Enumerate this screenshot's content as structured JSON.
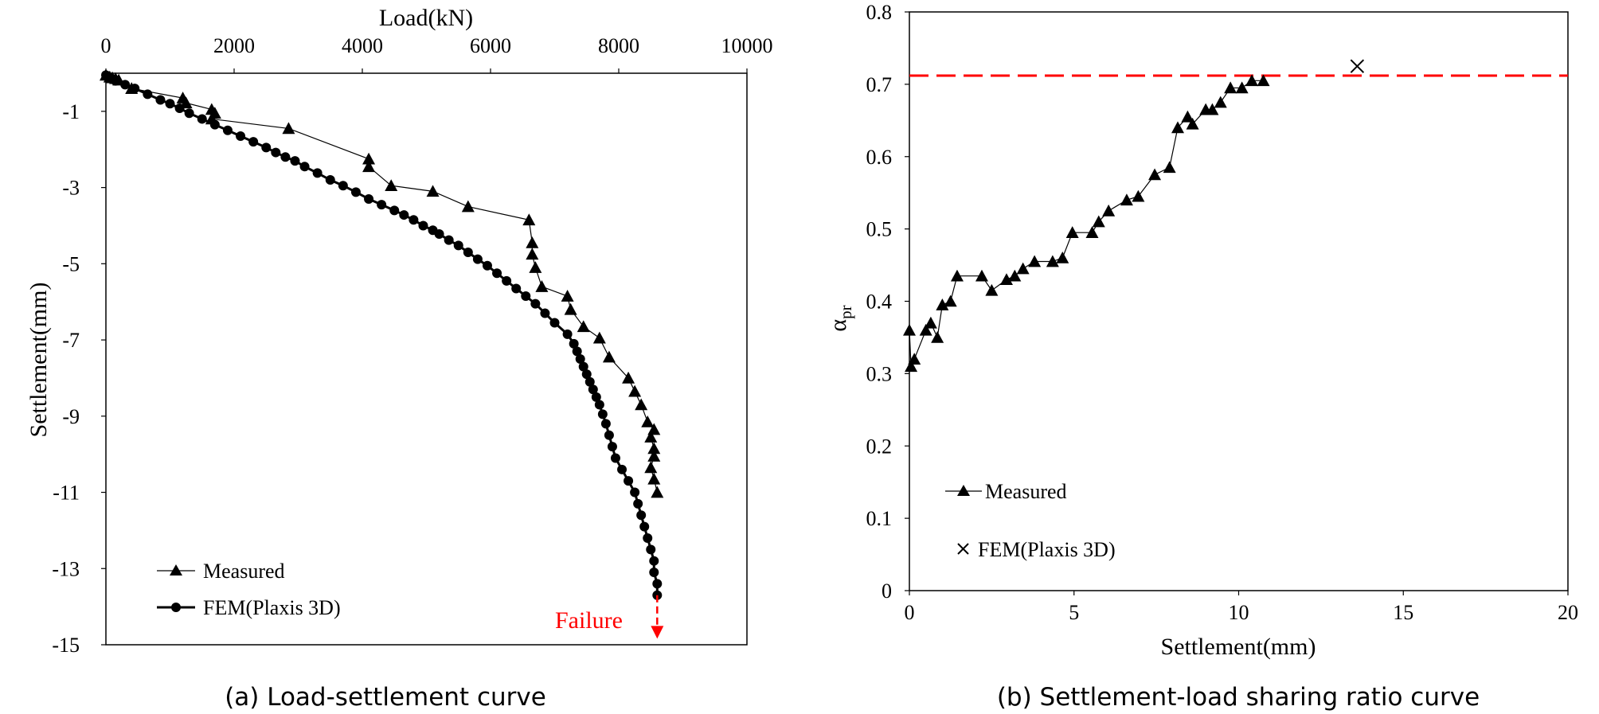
{
  "chart_data": [
    {
      "type": "line",
      "title": "",
      "caption": "(a) Load-settlement curve",
      "xlabel": "Load(kN)",
      "ylabel": "Settlement(mm)",
      "xlim": [
        0,
        10000
      ],
      "ylim": [
        -15,
        0
      ],
      "x_ticks": [
        "0",
        "2000",
        "4000",
        "6000",
        "8000",
        "10000"
      ],
      "y_ticks": [
        "-1",
        "-3",
        "-5",
        "-7",
        "-9",
        "-11",
        "-13",
        "-15"
      ],
      "x_axis_position": "top",
      "grid": false,
      "legend_position": "bottom-left",
      "annotation": {
        "text": "Failure",
        "color": "#ff0000",
        "x": 8600,
        "y_from": -13.7,
        "y_to": -14.8
      },
      "series": [
        {
          "name": "Measured",
          "marker": "triangle",
          "points": [
            [
              0,
              -0.05
            ],
            [
              60,
              -0.1
            ],
            [
              100,
              -0.12
            ],
            [
              150,
              -0.14
            ],
            [
              200,
              -0.18
            ],
            [
              400,
              -0.4
            ],
            [
              1200,
              -0.65
            ],
            [
              1250,
              -0.78
            ],
            [
              1650,
              -0.95
            ],
            [
              1700,
              -1.05
            ],
            [
              1650,
              -1.2
            ],
            [
              2850,
              -1.45
            ],
            [
              4100,
              -2.25
            ],
            [
              4100,
              -2.45
            ],
            [
              4450,
              -2.95
            ],
            [
              5100,
              -3.1
            ],
            [
              5650,
              -3.5
            ],
            [
              6600,
              -3.85
            ],
            [
              6650,
              -4.45
            ],
            [
              6650,
              -4.75
            ],
            [
              6700,
              -5.1
            ],
            [
              6800,
              -5.6
            ],
            [
              7200,
              -5.85
            ],
            [
              7250,
              -6.2
            ],
            [
              7450,
              -6.65
            ],
            [
              7700,
              -6.95
            ],
            [
              7850,
              -7.45
            ],
            [
              8150,
              -8.0
            ],
            [
              8250,
              -8.35
            ],
            [
              8350,
              -8.7
            ],
            [
              8450,
              -9.15
            ],
            [
              8550,
              -9.35
            ],
            [
              8500,
              -9.55
            ],
            [
              8550,
              -9.85
            ],
            [
              8550,
              -10.05
            ],
            [
              8500,
              -10.35
            ],
            [
              8550,
              -10.65
            ],
            [
              8600,
              -11.0
            ]
          ]
        },
        {
          "name": "FEM(Plaxis 3D)",
          "marker": "circle",
          "points": [
            [
              0,
              -0.05
            ],
            [
              50,
              -0.12
            ],
            [
              150,
              -0.2
            ],
            [
              300,
              -0.3
            ],
            [
              450,
              -0.4
            ],
            [
              650,
              -0.55
            ],
            [
              850,
              -0.7
            ],
            [
              1000,
              -0.8
            ],
            [
              1150,
              -0.92
            ],
            [
              1300,
              -1.05
            ],
            [
              1500,
              -1.2
            ],
            [
              1700,
              -1.35
            ],
            [
              1900,
              -1.5
            ],
            [
              2100,
              -1.65
            ],
            [
              2300,
              -1.8
            ],
            [
              2500,
              -1.95
            ],
            [
              2650,
              -2.08
            ],
            [
              2800,
              -2.2
            ],
            [
              2950,
              -2.3
            ],
            [
              3100,
              -2.45
            ],
            [
              3300,
              -2.62
            ],
            [
              3500,
              -2.8
            ],
            [
              3700,
              -2.95
            ],
            [
              3900,
              -3.12
            ],
            [
              4100,
              -3.3
            ],
            [
              4300,
              -3.45
            ],
            [
              4500,
              -3.6
            ],
            [
              4650,
              -3.72
            ],
            [
              4800,
              -3.85
            ],
            [
              4950,
              -4.0
            ],
            [
              5100,
              -4.12
            ],
            [
              5200,
              -4.22
            ],
            [
              5350,
              -4.38
            ],
            [
              5500,
              -4.52
            ],
            [
              5650,
              -4.7
            ],
            [
              5800,
              -4.88
            ],
            [
              5950,
              -5.05
            ],
            [
              6100,
              -5.25
            ],
            [
              6250,
              -5.45
            ],
            [
              6400,
              -5.65
            ],
            [
              6550,
              -5.85
            ],
            [
              6700,
              -6.05
            ],
            [
              6850,
              -6.3
            ],
            [
              7000,
              -6.55
            ],
            [
              7200,
              -6.85
            ],
            [
              7300,
              -7.1
            ],
            [
              7350,
              -7.3
            ],
            [
              7400,
              -7.5
            ],
            [
              7450,
              -7.7
            ],
            [
              7500,
              -7.9
            ],
            [
              7550,
              -8.1
            ],
            [
              7600,
              -8.3
            ],
            [
              7650,
              -8.5
            ],
            [
              7700,
              -8.7
            ],
            [
              7750,
              -8.95
            ],
            [
              7800,
              -9.2
            ],
            [
              7850,
              -9.5
            ],
            [
              7900,
              -9.8
            ],
            [
              7950,
              -10.1
            ],
            [
              8050,
              -10.4
            ],
            [
              8150,
              -10.7
            ],
            [
              8250,
              -11.0
            ],
            [
              8300,
              -11.3
            ],
            [
              8350,
              -11.6
            ],
            [
              8400,
              -11.9
            ],
            [
              8450,
              -12.2
            ],
            [
              8500,
              -12.5
            ],
            [
              8550,
              -12.8
            ],
            [
              8550,
              -13.1
            ],
            [
              8600,
              -13.4
            ],
            [
              8600,
              -13.7
            ]
          ]
        }
      ]
    },
    {
      "type": "scatter",
      "title": "",
      "caption": "(b) Settlement-load sharing ratio curve",
      "xlabel": "Settlement(mm)",
      "ylabel_main": "α",
      "ylabel_sub": "pr",
      "xlim": [
        0,
        20
      ],
      "ylim": [
        0,
        0.8
      ],
      "x_ticks": [
        "0",
        "5",
        "10",
        "15",
        "20"
      ],
      "y_ticks": [
        "0",
        "0.1",
        "0.2",
        "0.3",
        "0.4",
        "0.5",
        "0.6",
        "0.7",
        "0.8"
      ],
      "grid": false,
      "legend_position": "bottom-left",
      "reference_line": {
        "y": 0.712,
        "color": "#ff0000",
        "style": "dashed"
      },
      "series": [
        {
          "name": "Measured",
          "marker": "triangle",
          "points": [
            [
              0.0,
              0.36
            ],
            [
              0.05,
              0.31
            ],
            [
              0.15,
              0.32
            ],
            [
              0.5,
              0.36
            ],
            [
              0.65,
              0.37
            ],
            [
              0.85,
              0.35
            ],
            [
              1.0,
              0.395
            ],
            [
              1.25,
              0.4
            ],
            [
              1.45,
              0.435
            ],
            [
              2.2,
              0.435
            ],
            [
              2.5,
              0.415
            ],
            [
              2.95,
              0.43
            ],
            [
              3.2,
              0.435
            ],
            [
              3.45,
              0.445
            ],
            [
              3.8,
              0.455
            ],
            [
              4.35,
              0.455
            ],
            [
              4.65,
              0.46
            ],
            [
              4.95,
              0.495
            ],
            [
              5.55,
              0.495
            ],
            [
              5.75,
              0.51
            ],
            [
              6.05,
              0.525
            ],
            [
              6.6,
              0.54
            ],
            [
              6.95,
              0.545
            ],
            [
              7.45,
              0.575
            ],
            [
              7.9,
              0.585
            ],
            [
              8.15,
              0.64
            ],
            [
              8.45,
              0.655
            ],
            [
              8.6,
              0.645
            ],
            [
              9.0,
              0.665
            ],
            [
              9.2,
              0.665
            ],
            [
              9.45,
              0.675
            ],
            [
              9.75,
              0.695
            ],
            [
              10.1,
              0.695
            ],
            [
              10.4,
              0.705
            ],
            [
              10.75,
              0.705
            ]
          ]
        },
        {
          "name": "FEM(Plaxis 3D)",
          "marker": "x",
          "points": [
            [
              13.6,
              0.725
            ]
          ]
        }
      ]
    }
  ]
}
